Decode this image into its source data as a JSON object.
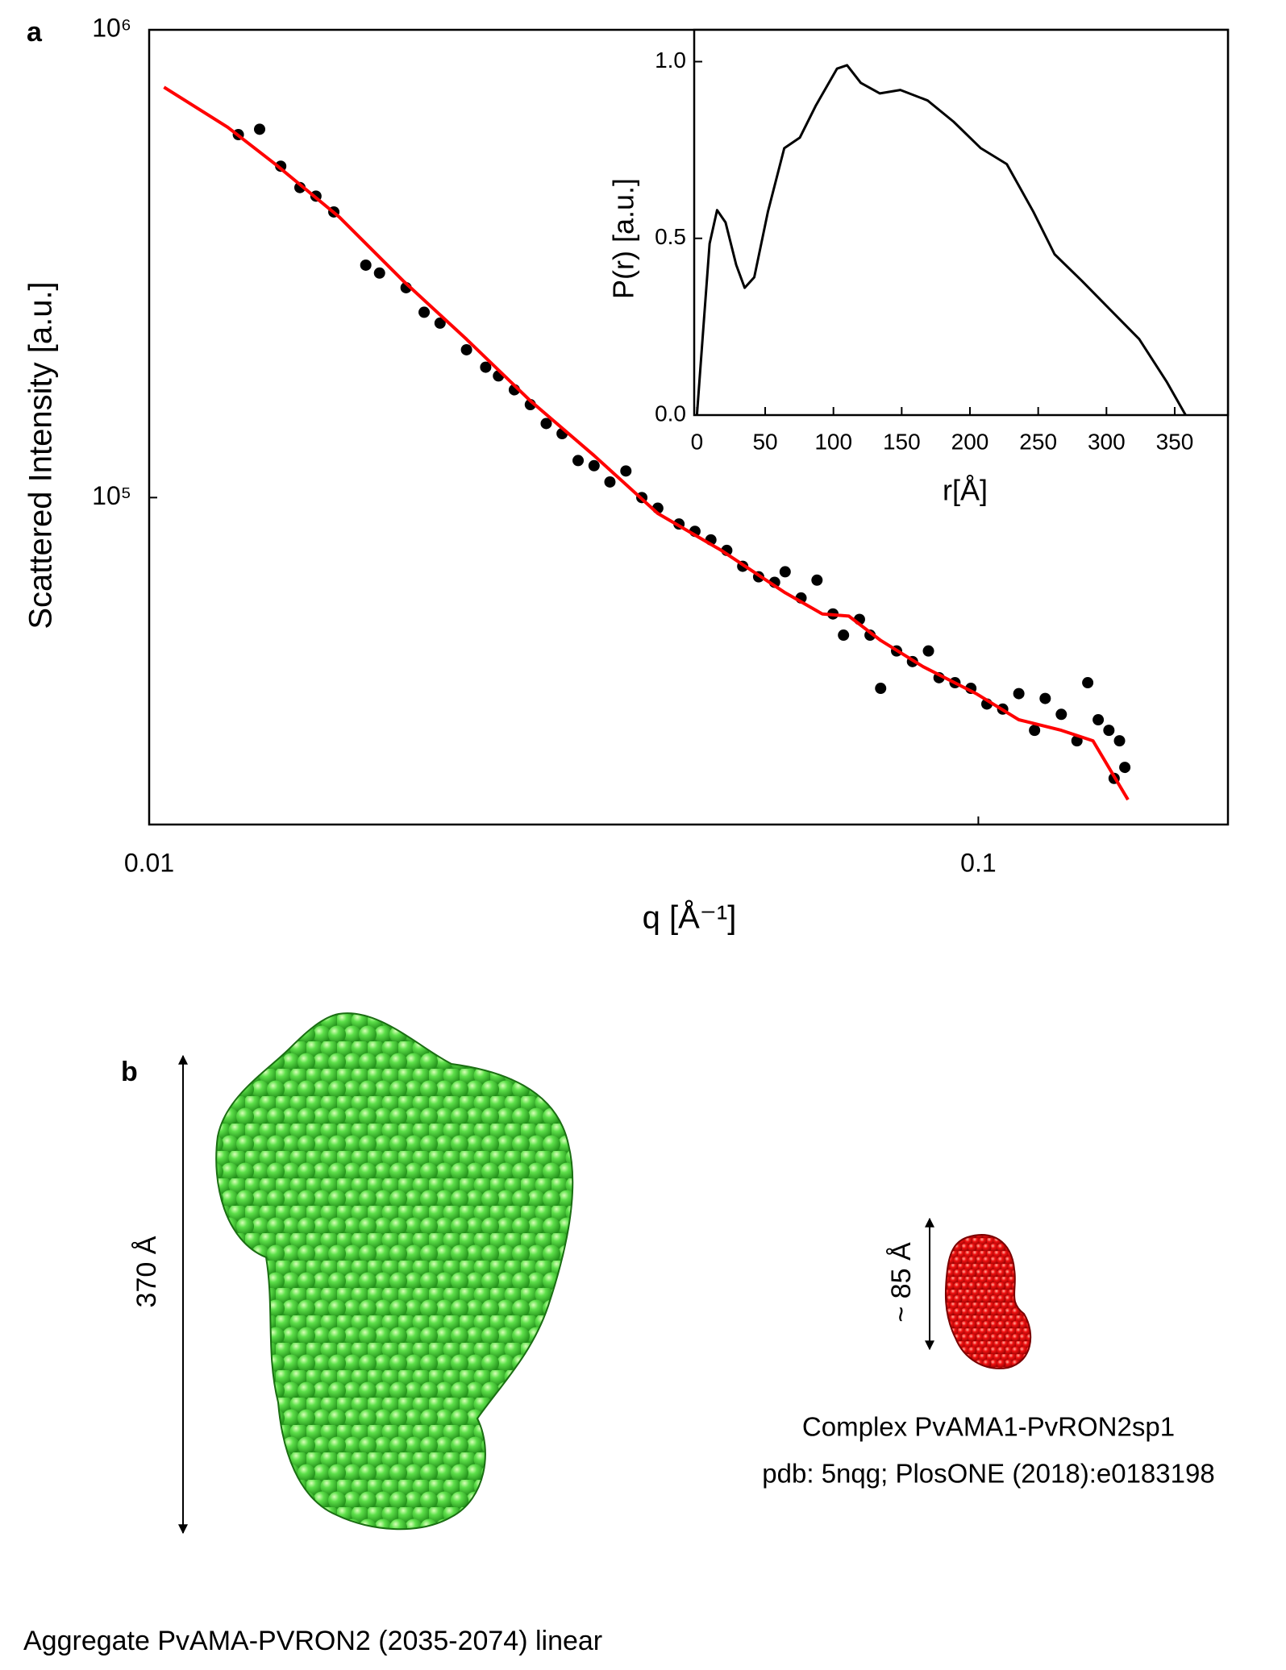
{
  "panel_labels": [
    "a",
    "b"
  ],
  "chart_data": [
    {
      "type": "scatter",
      "xlabel": "q [Å⁻¹]",
      "ylabel": "Scattered Intensity [a.u.]",
      "xscale": "log",
      "yscale": "log",
      "xlim": [
        0.01,
        0.2
      ],
      "ylim": [
        20000,
        1000000
      ],
      "xticks": [
        0.01,
        0.1
      ],
      "yticks": [
        {
          "value": 100000,
          "label": "10⁵"
        },
        {
          "value": 1000000,
          "label": "10⁶"
        }
      ],
      "series": [
        {
          "type": "scatter",
          "color": "#000000",
          "x": [
            0.01281,
            0.01359,
            0.01441,
            0.0152,
            0.01589,
            0.0167,
            0.01825,
            0.01896,
            0.02041,
            0.02146,
            0.02243,
            0.02414,
            0.02546,
            0.02638,
            0.02757,
            0.02882,
            0.03012,
            0.03148,
            0.03291,
            0.0344,
            0.03595,
            0.03758,
            0.03928,
            0.04106,
            0.04355,
            0.04552,
            0.04758,
            0.04973,
            0.05198,
            0.05433,
            0.05679,
            0.05848,
            0.06112,
            0.06389,
            0.06678,
            0.06877,
            0.07188,
            0.07403,
            0.07624,
            0.07969,
            0.08329,
            0.08706,
            0.08966,
            0.09372,
            0.09795,
            0.1024,
            0.107,
            0.1119,
            0.1169,
            0.1204,
            0.1259,
            0.1315,
            0.1355,
            0.1395,
            0.1437,
            0.1458,
            0.148,
            0.1502
          ],
          "values": [
            597000,
            613000,
            511000,
            460000,
            441000,
            408000,
            314000,
            302000,
            281000,
            249000,
            236000,
            207000,
            190000,
            182000,
            170000,
            158000,
            144000,
            137000,
            120000,
            117000,
            108000,
            114000,
            100000,
            94900,
            87800,
            84700,
            81200,
            77100,
            71300,
            67700,
            65900,
            69400,
            61000,
            66600,
            56400,
            50800,
            54900,
            50800,
            39100,
            47000,
            44600,
            47000,
            41200,
            40200,
            39100,
            36200,
            35300,
            38100,
            31800,
            37200,
            34400,
            30200,
            40200,
            33500,
            31800,
            25100,
            30200,
            26500
          ]
        },
        {
          "type": "line",
          "color": "#ff0000",
          "x": [
            0.01042,
            0.01244,
            0.0142,
            0.01695,
            0.02023,
            0.02414,
            0.02882,
            0.0344,
            0.04106,
            0.04899,
            0.05848,
            0.06482,
            0.0698,
            0.07624,
            0.08579,
            0.0994,
            0.1119,
            0.1259,
            0.1375,
            0.1515
          ],
          "values": [
            754000,
            619000,
            516000,
            398000,
            291000,
            218000,
            161000,
            123000,
            92500,
            77100,
            62600,
            56400,
            55800,
            49500,
            43500,
            38100,
            33500,
            31800,
            30200,
            22600
          ]
        }
      ]
    },
    {
      "type": "line",
      "xlabel": "r[Å]",
      "ylabel": "P(r) [a.u.]",
      "xlim": [
        -2,
        389
      ],
      "ylim": [
        0,
        1.09
      ],
      "xticks": [
        0,
        50,
        100,
        150,
        200,
        250,
        300,
        350
      ],
      "yticks": [
        {
          "value": 0,
          "label": "0.0"
        },
        {
          "value": 0.5,
          "label": "0.5"
        },
        {
          "value": 1,
          "label": "1.0"
        }
      ],
      "series": [
        {
          "type": "line",
          "color": "#000000",
          "x": [
            0,
            4.7,
            9.3,
            14.8,
            21,
            28.8,
            35,
            42,
            52,
            64,
            75.4,
            87,
            102.6,
            110,
            120,
            134,
            149,
            169,
            188,
            208,
            227,
            246.5,
            262,
            282,
            301,
            324,
            344,
            358
          ],
          "values": [
            0,
            0.245,
            0.485,
            0.58,
            0.545,
            0.425,
            0.36,
            0.39,
            0.575,
            0.755,
            0.785,
            0.875,
            0.98,
            0.99,
            0.94,
            0.91,
            0.92,
            0.89,
            0.83,
            0.755,
            0.71,
            0.575,
            0.455,
            0.38,
            0.305,
            0.215,
            0.095,
            0
          ]
        }
      ]
    }
  ],
  "annotations": {
    "dimension_large": "370 Å",
    "dimension_small": "~ 85 Å",
    "complex_caption": [
      "Complex PvAMA1-PvRON2sp1",
      "pdb: 5nqg; PlosONE (2018):e0183198"
    ],
    "aggregate_caption": "Aggregate PvAMA-PVRON2 (2035-2074) linear"
  }
}
